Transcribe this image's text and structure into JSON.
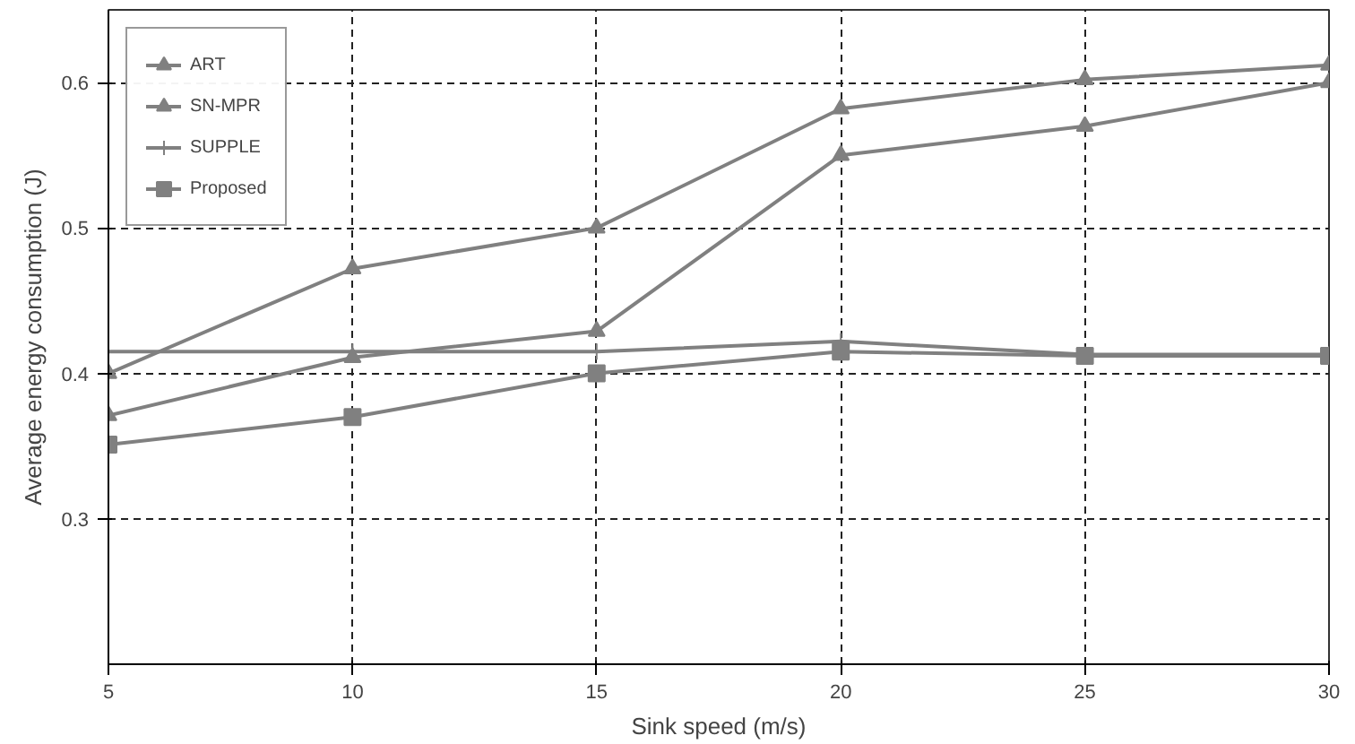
{
  "chart_data": {
    "type": "line",
    "xlabel": "Sink speed (m/s)",
    "ylabel": "Average energy consumption (J)",
    "x": [
      5,
      10,
      15,
      20,
      25,
      30
    ],
    "xlim": [
      5,
      30
    ],
    "xticks": [
      5,
      10,
      15,
      20,
      25,
      30
    ],
    "ylim": [
      0.2,
      0.65
    ],
    "yticks": [
      0.3,
      0.4,
      0.5,
      0.6
    ],
    "grid": true,
    "legend": "top left",
    "line_style": "solid",
    "series": [
      {
        "name": "ART",
        "color": "#808080",
        "marker": "triangle",
        "values": [
          0.4,
          0.472,
          0.5,
          0.582,
          0.602,
          0.612
        ]
      },
      {
        "name": "SN-MPR",
        "color": "#808080",
        "marker": "triangle",
        "values": [
          0.371,
          0.411,
          0.429,
          0.55,
          0.57,
          0.6
        ]
      },
      {
        "name": "SUPPLE",
        "color": "#808080",
        "marker": "cross",
        "values": [
          0.415,
          0.415,
          0.415,
          0.422,
          0.413,
          0.413
        ]
      },
      {
        "name": "Proposed",
        "color": "#808080",
        "marker": "square",
        "values": [
          0.351,
          0.37,
          0.4,
          0.415,
          0.412,
          0.412
        ]
      }
    ]
  }
}
